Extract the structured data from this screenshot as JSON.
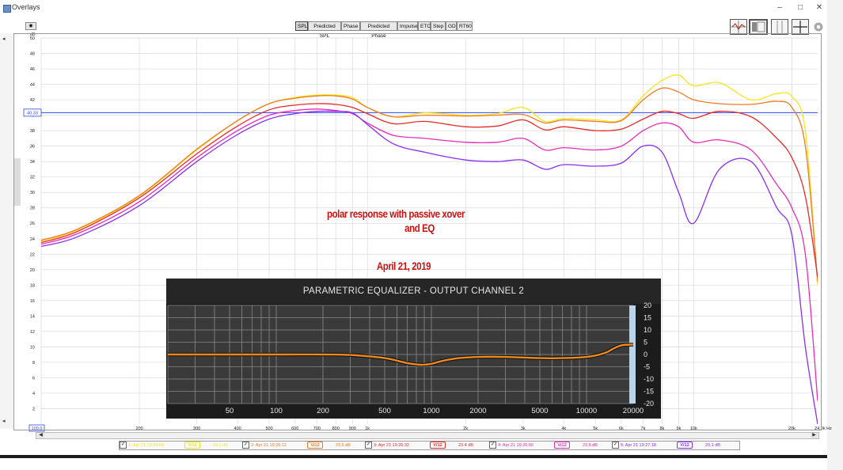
{
  "window": {
    "title": "Overlays",
    "controls": [
      "–",
      "□",
      "✕"
    ]
  },
  "toolbar": {
    "tabs": [
      {
        "label": "SPL",
        "active": true
      },
      {
        "label": "Predicted SPL",
        "active": false
      },
      {
        "label": "Phase",
        "active": false
      },
      {
        "label": "Predicted Phase",
        "active": false
      },
      {
        "label": "Impulse",
        "active": false
      },
      {
        "label": "ETC",
        "active": false
      },
      {
        "label": "Step",
        "active": false
      },
      {
        "label": "GD",
        "active": false
      },
      {
        "label": "RT60",
        "active": false
      }
    ],
    "left_button_icon": "camera-icon",
    "right_icons": [
      "overlay-traces-icon",
      "graph-layout-icon",
      "grid-icon",
      "crosshair-icon",
      "gear-icon"
    ]
  },
  "graph": {
    "y_unit": "dB",
    "y_ticks": [
      "50",
      "48",
      "46",
      "44",
      "42",
      "40",
      "38",
      "36",
      "34",
      "32",
      "30",
      "28",
      "26",
      "24",
      "22",
      "20",
      "18",
      "16",
      "14",
      "12",
      "10",
      "8",
      "6",
      "4",
      "2"
    ],
    "x_ticks": [
      "200",
      "300",
      "400",
      "500",
      "600",
      "700",
      "800",
      "900",
      "1k",
      "2k",
      "3k",
      "4k",
      "5k",
      "6k",
      "7k",
      "8k",
      "9k",
      "10k",
      "20k"
    ],
    "x_start_label": "100.0",
    "x_end_label": "24.0k Hz",
    "cursor_label": "40.33",
    "annotation_line1": "polar response with passive xover",
    "annotation_line2": "and EQ",
    "annotation_date": "April 21, 2019",
    "colors": {
      "grid": "#d9d9d9",
      "cursor": "#3344ee",
      "annotation": "#cc1111"
    }
  },
  "chart_data": {
    "type": "line",
    "x_scale": "log",
    "xlim": [
      100,
      24000
    ],
    "ylim": [
      0,
      50
    ],
    "xlabel": "",
    "ylabel": "dB",
    "series": [
      {
        "color": "#f5e61c",
        "points": [
          [
            100,
            23.7
          ],
          [
            130,
            25.2
          ],
          [
            200,
            29.5
          ],
          [
            300,
            35.5
          ],
          [
            400,
            39.3
          ],
          [
            500,
            41.5
          ],
          [
            600,
            42.3
          ],
          [
            700,
            42.6
          ],
          [
            800,
            42.6
          ],
          [
            900,
            42.3
          ],
          [
            1000,
            41.0
          ],
          [
            1200,
            39.8
          ],
          [
            1500,
            40.3
          ],
          [
            2000,
            40.0
          ],
          [
            2500,
            40.2
          ],
          [
            3000,
            41.0
          ],
          [
            3500,
            39.2
          ],
          [
            4000,
            39.6
          ],
          [
            5000,
            39.4
          ],
          [
            6000,
            39.4
          ],
          [
            7000,
            42.5
          ],
          [
            8000,
            44.5
          ],
          [
            9000,
            45.2
          ],
          [
            10000,
            43.8
          ],
          [
            12000,
            44.2
          ],
          [
            15000,
            42.0
          ],
          [
            18000,
            42.8
          ],
          [
            20000,
            42.4
          ],
          [
            22000,
            38.0
          ],
          [
            24000,
            18.0
          ]
        ]
      },
      {
        "color": "#f07a24",
        "points": [
          [
            100,
            23.8
          ],
          [
            130,
            25.3
          ],
          [
            200,
            29.6
          ],
          [
            300,
            35.6
          ],
          [
            400,
            39.3
          ],
          [
            500,
            41.5
          ],
          [
            600,
            42.2
          ],
          [
            700,
            42.5
          ],
          [
            800,
            42.5
          ],
          [
            900,
            42.1
          ],
          [
            1000,
            41.0
          ],
          [
            1200,
            39.8
          ],
          [
            1500,
            40.0
          ],
          [
            2000,
            39.9
          ],
          [
            2500,
            40.0
          ],
          [
            3000,
            40.1
          ],
          [
            3500,
            39.0
          ],
          [
            4000,
            39.4
          ],
          [
            5000,
            39.2
          ],
          [
            6000,
            39.3
          ],
          [
            7000,
            42.0
          ],
          [
            8000,
            43.5
          ],
          [
            9000,
            43.0
          ],
          [
            10000,
            42.0
          ],
          [
            12000,
            41.5
          ],
          [
            15000,
            41.4
          ],
          [
            18000,
            41.8
          ],
          [
            20000,
            41.0
          ],
          [
            22000,
            36.0
          ],
          [
            24000,
            18.4
          ]
        ]
      },
      {
        "color": "#e52a2a",
        "points": [
          [
            100,
            23.5
          ],
          [
            130,
            25.0
          ],
          [
            200,
            29.3
          ],
          [
            300,
            35.0
          ],
          [
            400,
            38.6
          ],
          [
            500,
            40.7
          ],
          [
            600,
            41.3
          ],
          [
            700,
            41.5
          ],
          [
            800,
            41.4
          ],
          [
            900,
            41.0
          ],
          [
            1000,
            40.2
          ],
          [
            1200,
            38.9
          ],
          [
            1500,
            39.2
          ],
          [
            2000,
            38.5
          ],
          [
            2500,
            38.6
          ],
          [
            3000,
            39.4
          ],
          [
            3500,
            38.1
          ],
          [
            4000,
            38.5
          ],
          [
            5000,
            38.0
          ],
          [
            6000,
            38.2
          ],
          [
            7000,
            39.5
          ],
          [
            8000,
            40.5
          ],
          [
            9000,
            40.2
          ],
          [
            10000,
            39.6
          ],
          [
            12000,
            40.5
          ],
          [
            15000,
            39.8
          ],
          [
            18000,
            37.0
          ],
          [
            20000,
            34.5
          ],
          [
            22000,
            29.5
          ],
          [
            24000,
            19.0
          ]
        ]
      },
      {
        "color": "#ea2ab8",
        "points": [
          [
            100,
            23.3
          ],
          [
            130,
            24.7
          ],
          [
            200,
            28.8
          ],
          [
            300,
            34.5
          ],
          [
            400,
            38.0
          ],
          [
            500,
            40.0
          ],
          [
            600,
            40.6
          ],
          [
            700,
            40.8
          ],
          [
            800,
            40.6
          ],
          [
            900,
            40.2
          ],
          [
            1000,
            39.0
          ],
          [
            1200,
            37.4
          ],
          [
            1500,
            37.0
          ],
          [
            2000,
            36.5
          ],
          [
            2500,
            36.5
          ],
          [
            3000,
            37.0
          ],
          [
            3500,
            35.5
          ],
          [
            4000,
            35.8
          ],
          [
            5000,
            35.5
          ],
          [
            6000,
            36.0
          ],
          [
            7000,
            38.0
          ],
          [
            8000,
            39.0
          ],
          [
            9000,
            38.5
          ],
          [
            10000,
            36.5
          ],
          [
            12000,
            36.8
          ],
          [
            15000,
            35.5
          ],
          [
            18000,
            31.0
          ],
          [
            20000,
            28.0
          ],
          [
            22000,
            22.0
          ],
          [
            24000,
            3.0
          ]
        ]
      },
      {
        "color": "#8a2ef0",
        "points": [
          [
            100,
            23.0
          ],
          [
            130,
            24.3
          ],
          [
            200,
            28.3
          ],
          [
            300,
            34.0
          ],
          [
            400,
            37.5
          ],
          [
            500,
            39.5
          ],
          [
            600,
            40.2
          ],
          [
            700,
            40.5
          ],
          [
            800,
            40.5
          ],
          [
            900,
            40.3
          ],
          [
            1000,
            38.8
          ],
          [
            1200,
            36.3
          ],
          [
            1500,
            35.2
          ],
          [
            2000,
            34.2
          ],
          [
            2500,
            34.0
          ],
          [
            3000,
            34.2
          ],
          [
            3500,
            33.0
          ],
          [
            4000,
            33.6
          ],
          [
            5000,
            33.4
          ],
          [
            6000,
            33.8
          ],
          [
            7000,
            36.0
          ],
          [
            8000,
            35.2
          ],
          [
            9000,
            30.0
          ],
          [
            10000,
            26.0
          ],
          [
            12000,
            33.0
          ],
          [
            15000,
            34.0
          ],
          [
            18000,
            28.0
          ],
          [
            20000,
            24.5
          ],
          [
            22000,
            10.0
          ],
          [
            24000,
            0.0
          ]
        ]
      }
    ]
  },
  "eq_panel": {
    "title": "PARAMETRIC EQUALIZER - OUTPUT CHANNEL 2",
    "x_labels": [
      "50",
      "100",
      "200",
      "500",
      "1000",
      "2000",
      "5000",
      "10000",
      "20000"
    ],
    "y_labels": [
      "20",
      "15",
      "10",
      "5",
      "0",
      "-5",
      "-10",
      "-15",
      "-20"
    ],
    "chart_data": {
      "type": "line",
      "x_scale": "log",
      "xlim": [
        20,
        20000
      ],
      "ylim": [
        -20,
        20
      ],
      "color": "#f08a1e",
      "points": [
        [
          20,
          0
        ],
        [
          100,
          0
        ],
        [
          200,
          0
        ],
        [
          300,
          -0.2
        ],
        [
          500,
          -1.5
        ],
        [
          700,
          -3.5
        ],
        [
          850,
          -4.2
        ],
        [
          1000,
          -3.8
        ],
        [
          1200,
          -2.5
        ],
        [
          1500,
          -1.5
        ],
        [
          2000,
          -1.0
        ],
        [
          3000,
          -1.0
        ],
        [
          5000,
          -1.5
        ],
        [
          7000,
          -1.5
        ],
        [
          10000,
          -1.0
        ],
        [
          13000,
          0.5
        ],
        [
          15000,
          2.5
        ],
        [
          17000,
          3.8
        ],
        [
          20000,
          4.0
        ]
      ]
    }
  },
  "legend": {
    "items": [
      {
        "label": "1: Apr 21 19:24:59",
        "badge": "V/12",
        "value": "24.1 dB",
        "color": "#f5e61c"
      },
      {
        "label": "2: Apr 21 19:26:12",
        "badge": "V/12",
        "value": "23.6 dB",
        "color": "#f07a24"
      },
      {
        "label": "3: Apr 21 19:26:32",
        "badge": "V/12",
        "value": "23.4 dB",
        "color": "#e52a2a"
      },
      {
        "label": "4: Apr 21 19:26:56",
        "badge": "V/12",
        "value": "23.8 dB",
        "color": "#ea2ab8"
      },
      {
        "label": "5: Apr 21 19:27:18",
        "badge": "V/12",
        "value": "23.1 dB",
        "color": "#8a2ef0"
      }
    ]
  }
}
